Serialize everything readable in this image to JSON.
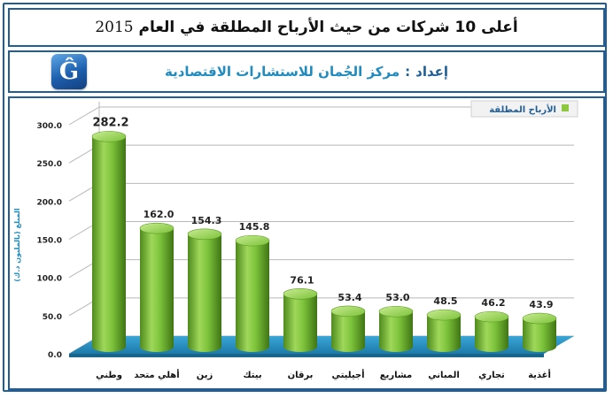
{
  "header": {
    "title": "أعلى 10 شركات من حيث الأرباح المطلقة في العام",
    "year": "2015"
  },
  "credit": {
    "prefix": "إعداد",
    "separator": ":",
    "organization": "مركز الجُمان للاستشارات الاقتصادية"
  },
  "logo": {
    "glyph": "Ĝ"
  },
  "chart_data": {
    "type": "bar",
    "style": "3d-cylinder",
    "categories": [
      "وطني",
      "أهلي متحد",
      "زين",
      "بيتك",
      "برقان",
      "أجيليتي",
      "مشاريع",
      "المباني",
      "تجاري",
      "أغذية"
    ],
    "series": [
      {
        "name": "الأرباح المطلقة",
        "values": [
          282.2,
          162.0,
          154.3,
          145.8,
          76.1,
          53.4,
          53.0,
          48.5,
          46.2,
          43.9
        ]
      }
    ],
    "data_labels": [
      "282.2",
      "162.0",
      "154.3",
      "145.8",
      "76.1",
      "53.4",
      "53.0",
      "48.5",
      "46.2",
      "43.9"
    ],
    "yticks": [
      "0.0",
      "50.0",
      "100.0",
      "150.0",
      "200.0",
      "250.0",
      "300.0"
    ],
    "ylim": [
      0,
      300
    ],
    "ylabel": "المبلغ (بالمليون د.ك)",
    "xlabel": "",
    "legend_position": "top-right",
    "grid": true,
    "colors": {
      "bar": "#7cc23a",
      "bar_light": "#b7e07a",
      "bar_dark": "#4f8a1d",
      "floor": "#2a8fc2",
      "grid": "#b8b8b8",
      "legend_marker": "#8dc63f"
    }
  }
}
